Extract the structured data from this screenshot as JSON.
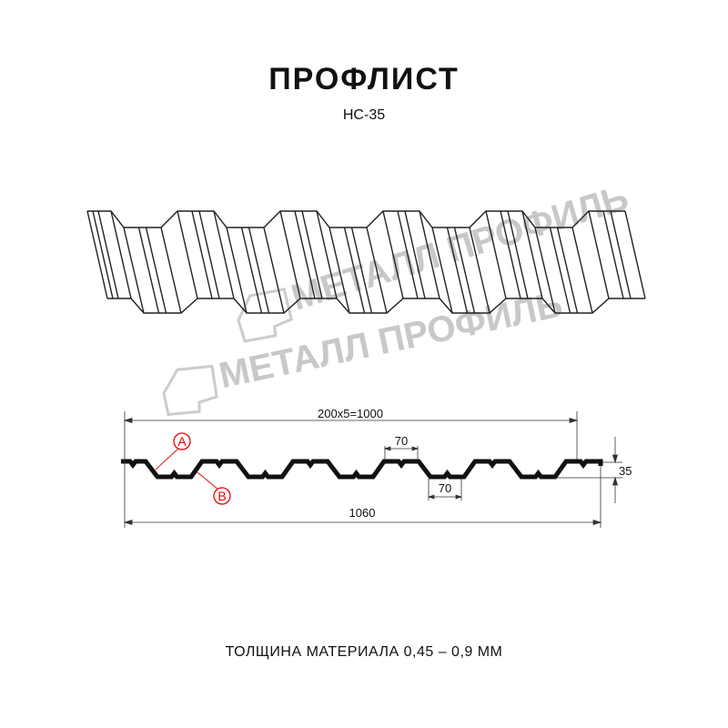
{
  "header": {
    "title": "ПРОФЛИСТ",
    "subtitle": "НС-35"
  },
  "watermark": {
    "text": "МЕТАЛЛ ПРОФИЛЬ",
    "color": "#c8c8c8"
  },
  "dimensions": {
    "pitch_total": "200x5=1000",
    "top_width": "70",
    "bottom_width": "70",
    "height": "35",
    "full_width": "1060"
  },
  "markers": {
    "a": "A",
    "b": "B",
    "color": "#e00000"
  },
  "footer": {
    "thickness": "ТОЛЩИНА МАТЕРИАЛА 0,45 – 0,9 ММ"
  }
}
